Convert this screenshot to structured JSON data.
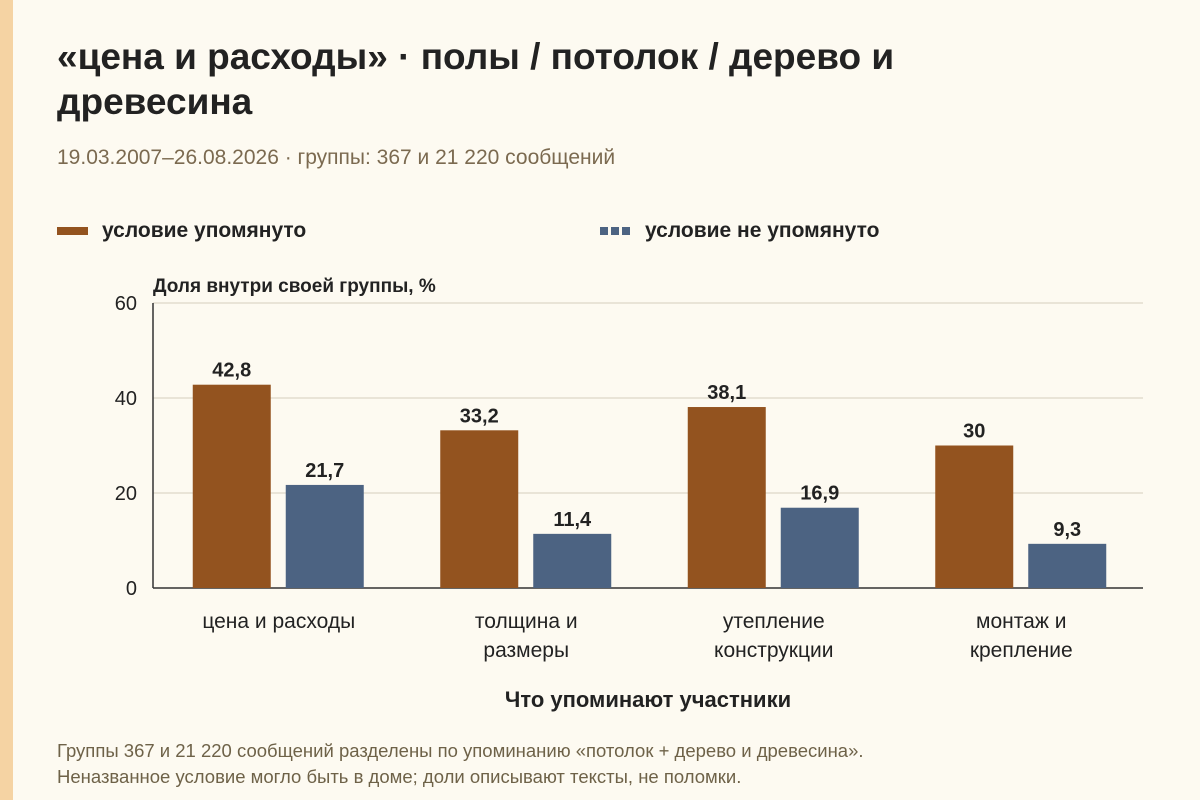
{
  "header": {
    "title": "«цена и расходы» · полы / потолок / дерево и древесина",
    "subtitle": "19.03.2007–26.08.2026 · группы: 367 и 21 220 сообщений"
  },
  "caption": {
    "line1": "Группы 367 и 21 220 сообщений разделены по упоминанию «потолок + дерево и древесина».",
    "line2": "Неназванное условие могло быть в доме; доли описывают тексты, не поломки."
  },
  "colors": {
    "mentioned": "#93531f",
    "not_mentioned": "#4c6382",
    "accent": "#f5d3a3",
    "background": "#fdfaf1"
  },
  "chart_data": {
    "type": "bar",
    "ylabel": "Доля внутри своей группы, %",
    "xlabel": "Что упоминают участники",
    "ylim": [
      0,
      60
    ],
    "yticks": [
      "0",
      "20",
      "40",
      "60"
    ],
    "grid": true,
    "legend_position": "top",
    "categories": [
      [
        "цена и расходы"
      ],
      [
        "толщина и",
        "размеры"
      ],
      [
        "утепление",
        "конструкции"
      ],
      [
        "монтаж и",
        "крепление"
      ]
    ],
    "series": [
      {
        "name": "условие упомянуто",
        "values": [
          42.8,
          33.2,
          38.1,
          30
        ],
        "labels": [
          "42,8",
          "33,2",
          "38,1",
          "30"
        ]
      },
      {
        "name": "условие не упомянуто",
        "values": [
          21.7,
          11.4,
          16.9,
          9.3
        ],
        "labels": [
          "21,7",
          "11,4",
          "16,9",
          "9,3"
        ]
      }
    ]
  }
}
